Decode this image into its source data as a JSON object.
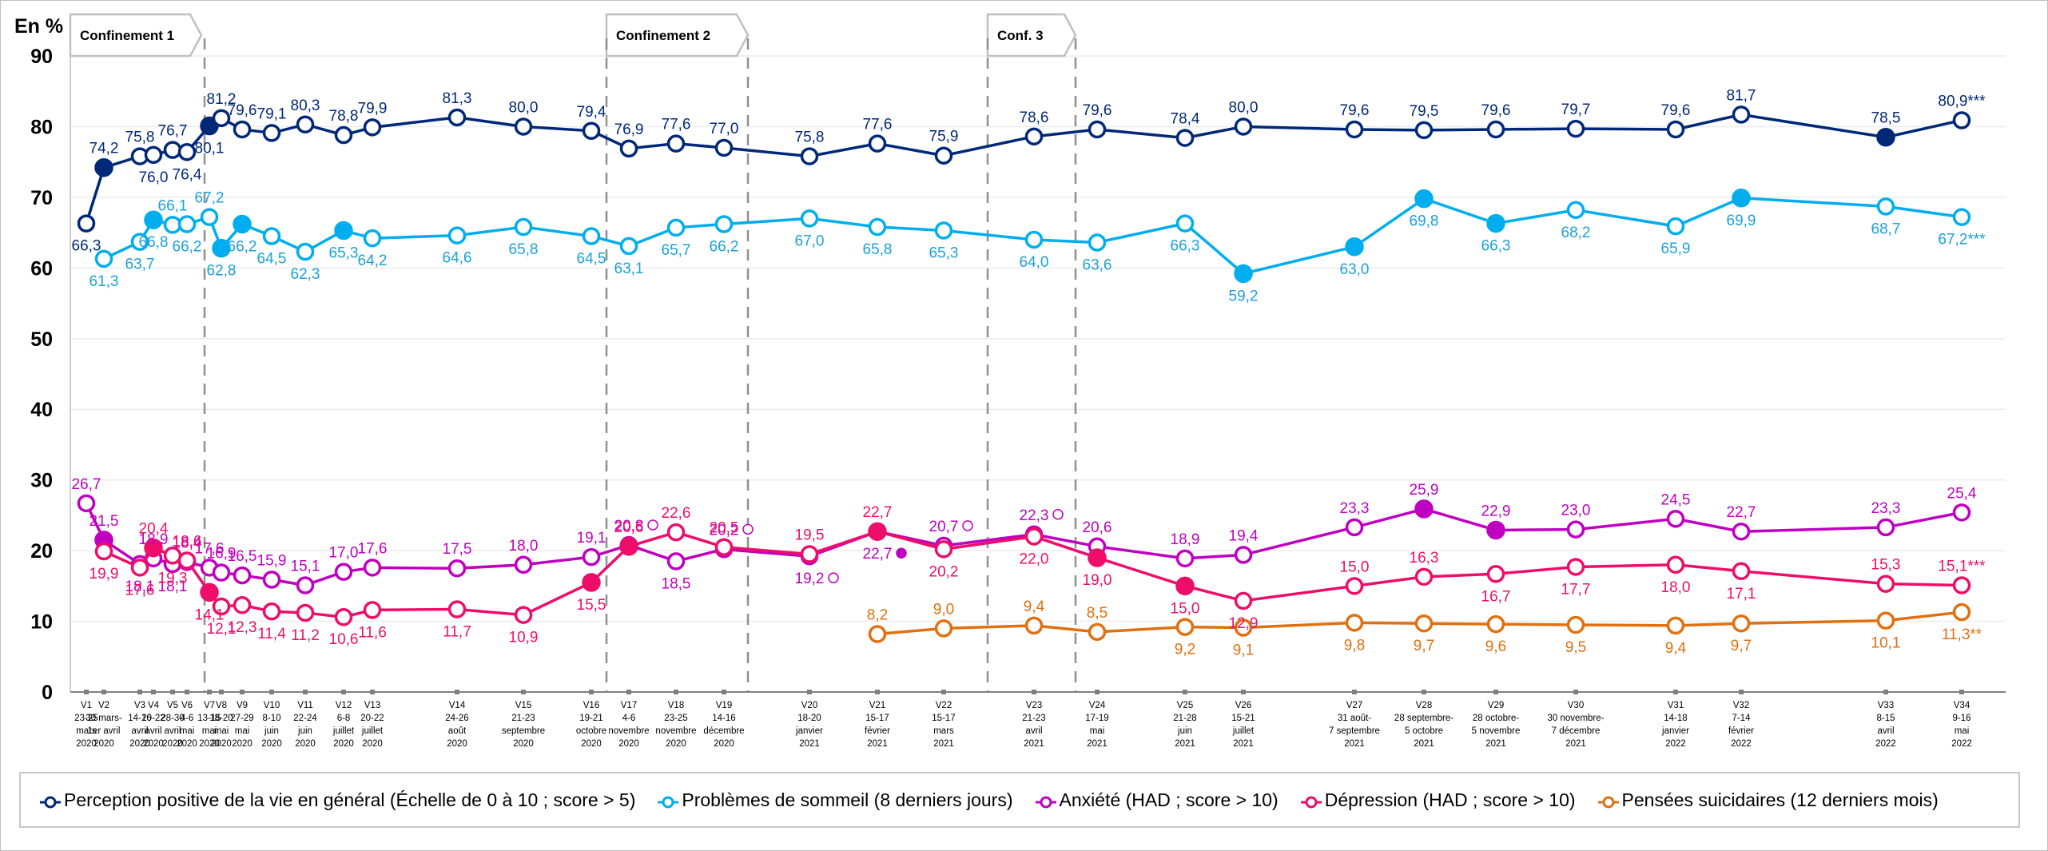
{
  "chart_data": {
    "type": "line",
    "title": "",
    "ylabel": "En %",
    "xlabel": "",
    "ylim": [
      0,
      90
    ],
    "yticks": [
      0,
      10,
      20,
      30,
      40,
      50,
      60,
      70,
      80,
      90
    ],
    "grid": true,
    "legend_position": "bottom",
    "categories": [
      {
        "id": "V1",
        "lines": [
          "V1",
          "23-25",
          "mars",
          "2020"
        ]
      },
      {
        "id": "V2",
        "lines": [
          "V2",
          "30 mars-",
          "1er avril",
          "2020"
        ]
      },
      {
        "id": "V3",
        "lines": [
          "V3",
          "14-16",
          "avril",
          "2020"
        ]
      },
      {
        "id": "V4",
        "lines": [
          "V4",
          "20-22",
          "avril",
          "2020"
        ]
      },
      {
        "id": "V5",
        "lines": [
          "V5",
          "28-30",
          "avril",
          "2020"
        ]
      },
      {
        "id": "V6",
        "lines": [
          "V6",
          "4-6",
          "mai",
          "2020"
        ]
      },
      {
        "id": "V7",
        "lines": [
          "V7",
          "13-15",
          "mai",
          "2020"
        ]
      },
      {
        "id": "V8",
        "lines": [
          "V8",
          "18-20",
          "mai",
          "2020"
        ]
      },
      {
        "id": "V9",
        "lines": [
          "V9",
          "27-29",
          "mai",
          "2020"
        ]
      },
      {
        "id": "V10",
        "lines": [
          "V10",
          "8-10",
          "juin",
          "2020"
        ]
      },
      {
        "id": "V11",
        "lines": [
          "V11",
          "22-24",
          "juin",
          "2020"
        ]
      },
      {
        "id": "V12",
        "lines": [
          "V12",
          "6-8",
          "juillet",
          "2020"
        ]
      },
      {
        "id": "V13",
        "lines": [
          "V13",
          "20-22",
          "juillet",
          "2020"
        ]
      },
      {
        "id": "V14",
        "lines": [
          "V14",
          "24-26",
          "août",
          "2020"
        ]
      },
      {
        "id": "V15",
        "lines": [
          "V15",
          "21-23",
          "septembre",
          "2020"
        ]
      },
      {
        "id": "V16",
        "lines": [
          "V16",
          "19-21",
          "octobre",
          "2020"
        ]
      },
      {
        "id": "V17",
        "lines": [
          "V17",
          "4-6",
          "novembre",
          "2020"
        ]
      },
      {
        "id": "V18",
        "lines": [
          "V18",
          "23-25",
          "novembre",
          "2020"
        ]
      },
      {
        "id": "V19",
        "lines": [
          "V19",
          "14-16",
          "décembre",
          "2020"
        ]
      },
      {
        "id": "V20",
        "lines": [
          "V20",
          "18-20",
          "janvier",
          "2021"
        ]
      },
      {
        "id": "V21",
        "lines": [
          "V21",
          "15-17",
          "février",
          "2021"
        ]
      },
      {
        "id": "V22",
        "lines": [
          "V22",
          "15-17",
          "mars",
          "2021"
        ]
      },
      {
        "id": "V23",
        "lines": [
          "V23",
          "21-23",
          "avril",
          "2021"
        ]
      },
      {
        "id": "V24",
        "lines": [
          "V24",
          "17-19",
          "mai",
          "2021"
        ]
      },
      {
        "id": "V25",
        "lines": [
          "V25",
          "21-28",
          "juin",
          "2021"
        ]
      },
      {
        "id": "V26",
        "lines": [
          "V26",
          "15-21",
          "juillet",
          "2021"
        ]
      },
      {
        "id": "V27",
        "lines": [
          "V27",
          "31 août-",
          "7 septembre",
          "2021"
        ]
      },
      {
        "id": "V28",
        "lines": [
          "V28",
          "28 septembre-",
          "5 octobre",
          "2021"
        ]
      },
      {
        "id": "V29",
        "lines": [
          "V29",
          "28 octobre-",
          "5 novembre",
          "2021"
        ]
      },
      {
        "id": "V30",
        "lines": [
          "V30",
          "30 novembre-",
          "7 décembre",
          "2021"
        ]
      },
      {
        "id": "V31",
        "lines": [
          "V31",
          "14-18",
          "janvier",
          "2022"
        ]
      },
      {
        "id": "V32",
        "lines": [
          "V32",
          "7-14",
          "février",
          "2022"
        ]
      },
      {
        "id": "V33",
        "lines": [
          "V33",
          "8-15",
          "avril",
          "2022"
        ]
      },
      {
        "id": "V34",
        "lines": [
          "V34",
          "9-16",
          "mai",
          "2022"
        ]
      }
    ],
    "series": [
      {
        "name": "Perception positive de la vie en général (Échelle de 0 à 10 ; score > 5)",
        "key": "perception",
        "color": "#002878",
        "values": [
          66.3,
          74.2,
          75.8,
          76.0,
          76.7,
          76.4,
          80.1,
          81.2,
          79.6,
          79.1,
          80.3,
          78.8,
          79.9,
          81.3,
          80.0,
          79.4,
          76.9,
          77.6,
          77.0,
          75.8,
          77.6,
          75.9,
          78.6,
          79.6,
          78.4,
          80.0,
          79.6,
          79.5,
          79.6,
          79.7,
          79.6,
          81.7,
          78.5,
          80.9
        ],
        "filled": [
          1,
          6,
          32
        ],
        "suffix_last": "***"
      },
      {
        "name": "Problèmes de sommeil (8 derniers jours)",
        "key": "sommeil",
        "color": "#00AEEF",
        "label_color": "#1BA1D9",
        "values": [
          null,
          61.3,
          63.7,
          66.8,
          66.1,
          66.2,
          67.2,
          62.8,
          66.2,
          64.5,
          62.3,
          65.3,
          64.2,
          64.6,
          65.8,
          64.5,
          63.1,
          65.7,
          66.2,
          67.0,
          65.8,
          65.3,
          64.0,
          63.6,
          66.3,
          59.2,
          63.0,
          69.8,
          66.3,
          68.2,
          65.9,
          69.9,
          68.7,
          67.2
        ],
        "filled": [
          3,
          7,
          8,
          11,
          25,
          26,
          27,
          28,
          31
        ],
        "suffix_last": "***"
      },
      {
        "name": "Anxiété (HAD ; score > 10)",
        "key": "anxiete",
        "color": "#C000C0",
        "values": [
          26.7,
          21.5,
          18.1,
          18.9,
          18.1,
          18.4,
          17.6,
          16.9,
          16.5,
          15.9,
          15.1,
          17.0,
          17.6,
          17.5,
          18.0,
          19.1,
          20.8,
          18.5,
          20.2,
          19.2,
          22.7,
          20.7,
          22.3,
          20.6,
          18.9,
          19.4,
          23.3,
          25.9,
          22.9,
          23.0,
          24.5,
          22.7,
          23.3,
          25.4
        ],
        "filled": [
          1,
          27,
          28
        ],
        "label_markers": {
          "16": "open",
          "18": "open",
          "19": "open",
          "20": "filled",
          "21": "open",
          "22": "open"
        }
      },
      {
        "name": "Dépression (HAD ; score > 10)",
        "key": "depression",
        "color": "#EE0E6A",
        "values": [
          null,
          19.9,
          17.6,
          20.4,
          19.3,
          18.6,
          14.1,
          12.1,
          12.3,
          11.4,
          11.2,
          10.6,
          11.6,
          11.7,
          10.9,
          15.5,
          20.6,
          22.6,
          20.5,
          19.5,
          22.7,
          20.2,
          22.0,
          19.0,
          15.0,
          12.9,
          15.0,
          16.3,
          16.7,
          17.7,
          18.0,
          17.1,
          15.3,
          15.1
        ],
        "filled": [
          3,
          6,
          15,
          16,
          20,
          23,
          24
        ],
        "suffix_last": "***"
      },
      {
        "name": "Pensées suicidaires (12 derniers mois)",
        "key": "suicidaires",
        "color": "#E07010",
        "values": [
          null,
          null,
          null,
          null,
          null,
          null,
          null,
          null,
          null,
          null,
          null,
          null,
          null,
          null,
          null,
          null,
          null,
          null,
          null,
          null,
          8.2,
          9.0,
          9.4,
          8.5,
          9.2,
          9.1,
          9.8,
          9.7,
          9.6,
          9.5,
          9.4,
          9.7,
          10.1,
          11.3
        ],
        "filled": [],
        "suffix_last": "**"
      }
    ],
    "annotations": [
      {
        "label": "Confinement 1",
        "from": "V7",
        "to": "V7"
      },
      {
        "label": "Confinement 2",
        "from": "V16",
        "to": "V19"
      },
      {
        "label": "Conf. 3",
        "from": "V22",
        "to": "V24"
      }
    ]
  }
}
